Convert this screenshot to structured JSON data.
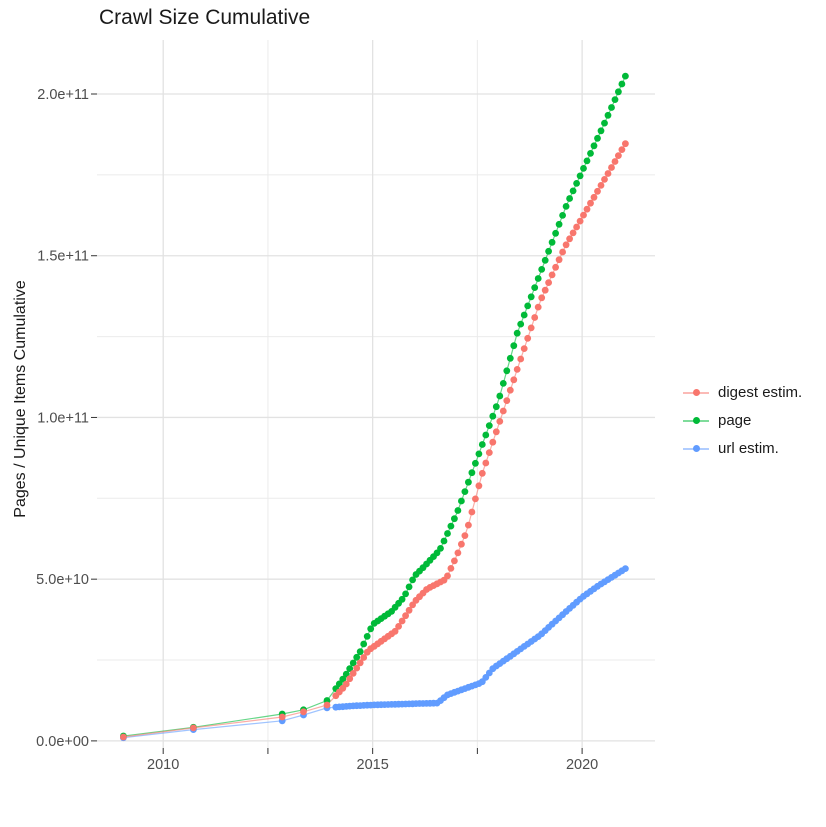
{
  "chart_data": {
    "type": "line",
    "title": "Crawl Size Cumulative",
    "xlabel": "",
    "ylabel": "Pages / Unique Items Cumulative",
    "legend_position": "right",
    "grid": true,
    "background": "#ffffff",
    "xlim": [
      2008.42,
      2021.74
    ],
    "ylim": [
      -2200000000.0,
      216700000000.0
    ],
    "x_major_ticks": [
      {
        "value": 2010,
        "label": "2010"
      },
      {
        "value": 2015,
        "label": "2015"
      },
      {
        "value": 2020,
        "label": "2020"
      }
    ],
    "x_minor_ticks": [
      2012.5,
      2017.5
    ],
    "y_major_ticks": [
      {
        "value": 0,
        "label": "0.0e+00"
      },
      {
        "value": 50000000000.0,
        "label": "5.0e+10"
      },
      {
        "value": 100000000000.0,
        "label": "1.0e+11"
      },
      {
        "value": 150000000000.0,
        "label": "1.5e+11"
      },
      {
        "value": 200000000000.0,
        "label": "2.0e+11"
      }
    ],
    "y_minor_ticks": [
      25000000000.0,
      75000000000.0,
      125000000000.0,
      175000000000.0
    ],
    "point_style": {
      "radius": 3.4,
      "line_width": 1.2,
      "line_opacity": 0.6
    },
    "sampling": {
      "dense_from_year": 2014.12,
      "point_interval_years": 0.0833
    },
    "series": [
      {
        "id": "digest-estim",
        "name": "digest estim.",
        "color": "#F8766D",
        "draw_order": 3,
        "points": [
          [
            2009.05,
            1200000000.0
          ],
          [
            2010.72,
            4000000000.0
          ],
          [
            2012.84,
            7400000000.0
          ],
          [
            2013.35,
            9000000000.0
          ],
          [
            2013.91,
            11100000000.0
          ],
          [
            2014.34,
            17000000000.0
          ],
          [
            2014.9,
            28000000000.0
          ],
          [
            2015.55,
            34000000000.0
          ],
          [
            2016.0,
            43000000000.0
          ],
          [
            2016.3,
            47000000000.0
          ],
          [
            2016.75,
            50000000000.0
          ],
          [
            2017.0,
            57000000000.0
          ],
          [
            2017.25,
            65000000000.0
          ],
          [
            2017.6,
            82000000000.0
          ],
          [
            2018.3,
            109000000000.0
          ],
          [
            2019.0,
            136000000000.0
          ],
          [
            2019.6,
            153000000000.0
          ],
          [
            2020.1,
            164000000000.0
          ],
          [
            2021.05,
            185000000000.0
          ]
        ]
      },
      {
        "id": "page",
        "name": "page",
        "color": "#00BA38",
        "draw_order": 1,
        "points": [
          [
            2009.05,
            1500000000.0
          ],
          [
            2010.72,
            4200000000.0
          ],
          [
            2012.84,
            8300000000.0
          ],
          [
            2013.35,
            9600000000.0
          ],
          [
            2013.91,
            12500000000.0
          ],
          [
            2014.34,
            20000000000.0
          ],
          [
            2014.7,
            27500000000.0
          ],
          [
            2015.0,
            36000000000.0
          ],
          [
            2015.45,
            40000000000.0
          ],
          [
            2015.75,
            44500000000.0
          ],
          [
            2016.0,
            51000000000.0
          ],
          [
            2016.2,
            53500000000.0
          ],
          [
            2016.6,
            59000000000.0
          ],
          [
            2017.0,
            70000000000.0
          ],
          [
            2017.4,
            84000000000.0
          ],
          [
            2018.0,
            105000000000.0
          ],
          [
            2018.45,
            126000000000.0
          ],
          [
            2019.16,
            150000000000.0
          ],
          [
            2019.64,
            166000000000.0
          ],
          [
            2020.5,
            190000000000.0
          ],
          [
            2021.05,
            206000000000.0
          ]
        ]
      },
      {
        "id": "url-estim",
        "name": "url estim.",
        "color": "#619CFF",
        "draw_order": 2,
        "points": [
          [
            2009.05,
            1000000000.0
          ],
          [
            2010.72,
            3500000000.0
          ],
          [
            2012.84,
            6200000000.0
          ],
          [
            2013.35,
            8000000000.0
          ],
          [
            2013.91,
            10200000000.0
          ],
          [
            2014.5,
            10800000000.0
          ],
          [
            2015.0,
            11100000000.0
          ],
          [
            2016.0,
            11500000000.0
          ],
          [
            2016.55,
            11700000000.0
          ],
          [
            2016.78,
            14200000000.0
          ],
          [
            2017.25,
            16400000000.0
          ],
          [
            2017.6,
            18000000000.0
          ],
          [
            2017.88,
            22500000000.0
          ],
          [
            2018.4,
            27200000000.0
          ],
          [
            2019.0,
            32700000000.0
          ],
          [
            2019.6,
            39800000000.0
          ],
          [
            2020.0,
            44400000000.0
          ],
          [
            2020.4,
            48100000000.0
          ],
          [
            2021.05,
            53400000000.0
          ]
        ]
      }
    ],
    "style_colors": {
      "grid_major": "#e2e2e2",
      "grid_minor": "#ebebeb",
      "tick_mark": "#333333",
      "tick_label": "#4d4d4d",
      "text": "#1a1a1a"
    }
  }
}
